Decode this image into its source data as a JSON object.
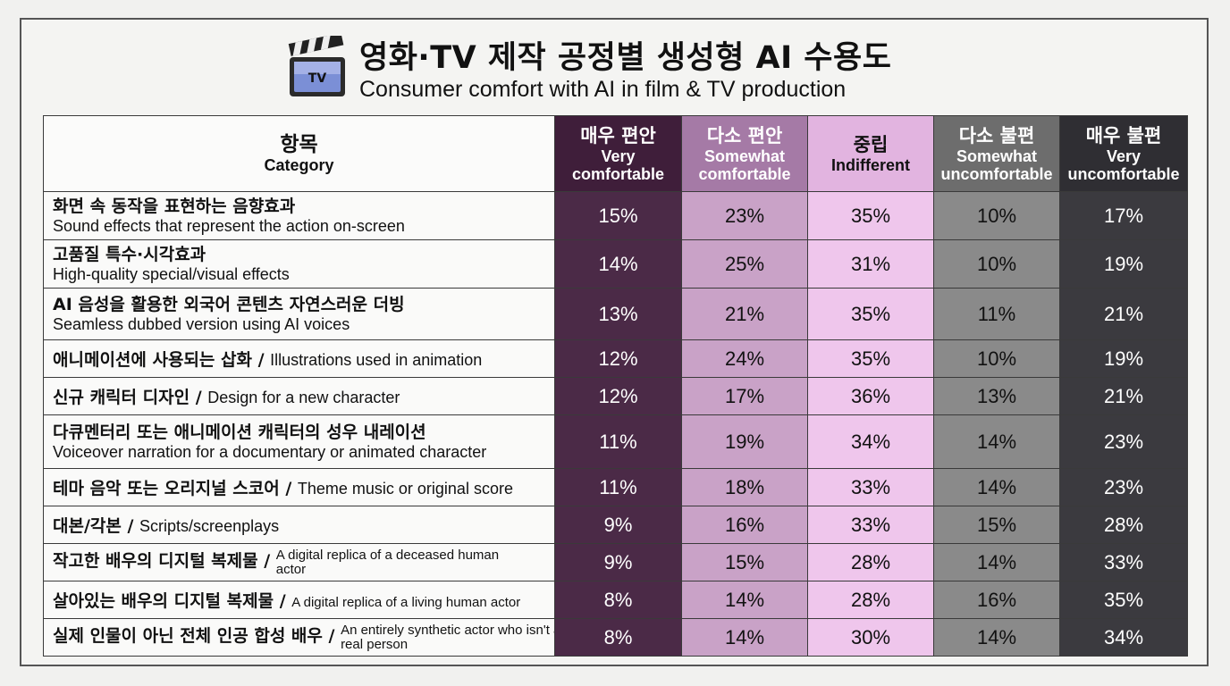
{
  "header": {
    "title_ko": "영화·TV 제작 공정별 생성형 AI 수용도",
    "title_en": "Consumer comfort with AI in film & TV production",
    "icon": "tv-clapperboard-icon",
    "icon_label": "TV"
  },
  "chart_data": {
    "type": "table",
    "row_header": {
      "ko": "항목",
      "en": "Category"
    },
    "columns": [
      {
        "ko": "매우 편안",
        "en": "Very comfortable",
        "color": "#3f1e3a"
      },
      {
        "ko": "다소 편안",
        "en": "Somewhat comfortable",
        "color": "#a57aa6"
      },
      {
        "ko": "중립",
        "en": "Indifferent",
        "color": "#e2b4e0"
      },
      {
        "ko": "다소 불편",
        "en": "Somewhat uncomfortable",
        "color": "#6d6d6d"
      },
      {
        "ko": "매우 불편",
        "en": "Very uncomfortable",
        "color": "#2f2e33"
      }
    ],
    "rows": [
      {
        "ko": "화면 속 동작을 표현하는 음향효과",
        "en": "Sound effects that represent the action on-screen",
        "style": "two-line",
        "values": [
          "15%",
          "23%",
          "35%",
          "10%",
          "17%"
        ]
      },
      {
        "ko": "고품질 특수·시각효과",
        "en": "High-quality special/visual effects",
        "style": "two-line",
        "values": [
          "14%",
          "25%",
          "31%",
          "10%",
          "19%"
        ]
      },
      {
        "ko": "AI 음성을 활용한 외국어 콘텐츠 자연스러운 더빙",
        "en": "Seamless dubbed version using AI voices",
        "style": "two-line",
        "values": [
          "13%",
          "21%",
          "35%",
          "11%",
          "21%"
        ]
      },
      {
        "ko": "애니메이션에 사용되는 삽화",
        "en": "Illustrations used in animation",
        "style": "inline",
        "values": [
          "12%",
          "24%",
          "35%",
          "10%",
          "19%"
        ]
      },
      {
        "ko": "신규 캐릭터 디자인",
        "en": "Design for a new character",
        "style": "inline",
        "values": [
          "12%",
          "17%",
          "36%",
          "13%",
          "21%"
        ]
      },
      {
        "ko": "다큐멘터리 또는 애니메이션 캐릭터의 성우 내레이션",
        "en": "Voiceover narration for a documentary or animated character",
        "style": "two-line",
        "values": [
          "11%",
          "19%",
          "34%",
          "14%",
          "23%"
        ]
      },
      {
        "ko": "테마 음악 또는 오리지널 스코어",
        "en": "Theme music or original score",
        "style": "inline",
        "values": [
          "11%",
          "18%",
          "33%",
          "14%",
          "23%"
        ]
      },
      {
        "ko": "대본/각본",
        "en": "Scripts/screenplays",
        "style": "inline",
        "values": [
          "9%",
          "16%",
          "33%",
          "15%",
          "28%"
        ]
      },
      {
        "ko": "작고한 배우의 디지털 복제물",
        "en": "A digital replica of a deceased human actor",
        "style": "inline-small",
        "values": [
          "9%",
          "15%",
          "28%",
          "14%",
          "33%"
        ]
      },
      {
        "ko": "살아있는 배우의 디지털 복제물",
        "en": "A digital replica of a living human actor",
        "style": "inline-small",
        "values": [
          "8%",
          "14%",
          "28%",
          "16%",
          "35%"
        ]
      },
      {
        "ko": "실제 인물이 아닌 전체 인공 합성 배우",
        "en": "An entirely synthetic actor who isn't a real person",
        "style": "inline-small",
        "values": [
          "8%",
          "14%",
          "30%",
          "14%",
          "34%"
        ]
      }
    ]
  }
}
